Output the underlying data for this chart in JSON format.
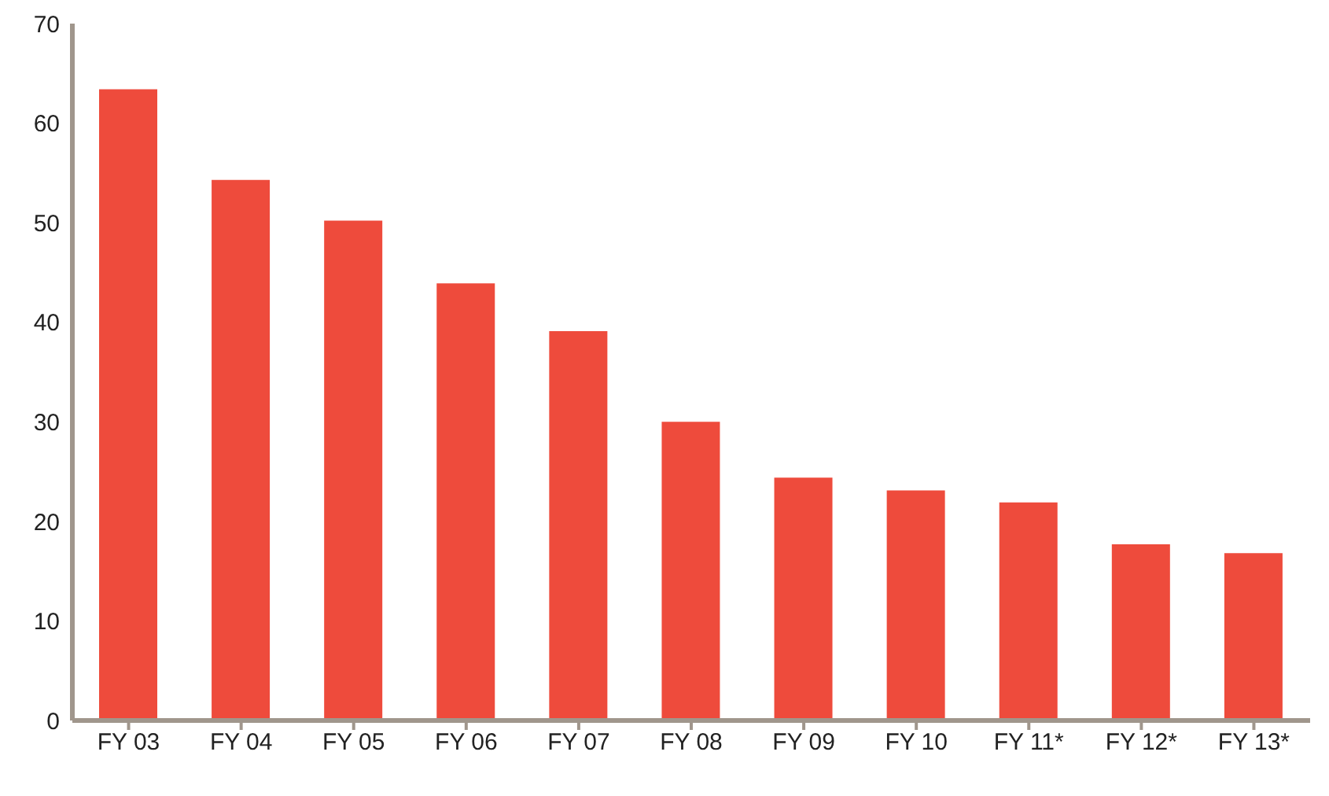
{
  "chart_data": {
    "type": "bar",
    "categories": [
      "FY 03",
      "FY 04",
      "FY 05",
      "FY 06",
      "FY 07",
      "FY 08",
      "FY 09",
      "FY 10",
      "FY 11*",
      "FY 12*",
      "FY 13*"
    ],
    "values": [
      63.4,
      54.3,
      50.2,
      43.9,
      39.1,
      30.0,
      24.4,
      23.1,
      21.9,
      17.7,
      16.8
    ],
    "color": "#ee4b3c",
    "ylim": [
      0,
      70
    ],
    "yticks": [
      0,
      10,
      20,
      30,
      40,
      50,
      60,
      70
    ],
    "grid": false
  }
}
